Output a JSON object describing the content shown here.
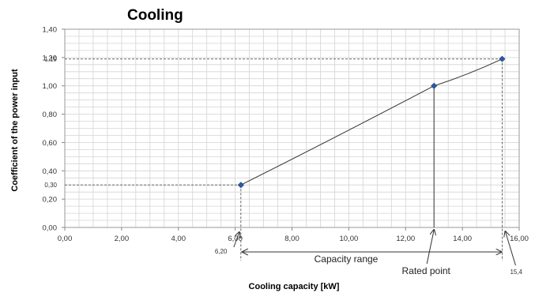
{
  "chart_data": {
    "type": "line",
    "title": "Cooling",
    "xlabel": "Cooling capacity [kW]",
    "ylabel": "Coefficient of the power input",
    "xlim": [
      0,
      16
    ],
    "ylim": [
      0,
      1.4
    ],
    "x_ticks": [
      "0,00",
      "2,00",
      "4,00",
      "6,00",
      "8,00",
      "10,00",
      "12,00",
      "14,00",
      "16,00"
    ],
    "y_ticks": [
      "0,00",
      "0,20",
      "0,40",
      "0,60",
      "0,80",
      "1,00",
      "1.20",
      "1,40"
    ],
    "grid": true,
    "series": [
      {
        "x": [
          6.2,
          13.0,
          15.4
        ],
        "y": [
          0.3,
          1.0,
          1.19
        ]
      }
    ],
    "marker_color": "#2a5aa8",
    "line_color": "#333333",
    "reference_labels": {
      "x_min": "6,20",
      "x_max": "15,4",
      "y_min": "0,30",
      "y_max": "1,19"
    },
    "annotations": {
      "range": "Capacity range",
      "rated": "Rated point"
    }
  }
}
